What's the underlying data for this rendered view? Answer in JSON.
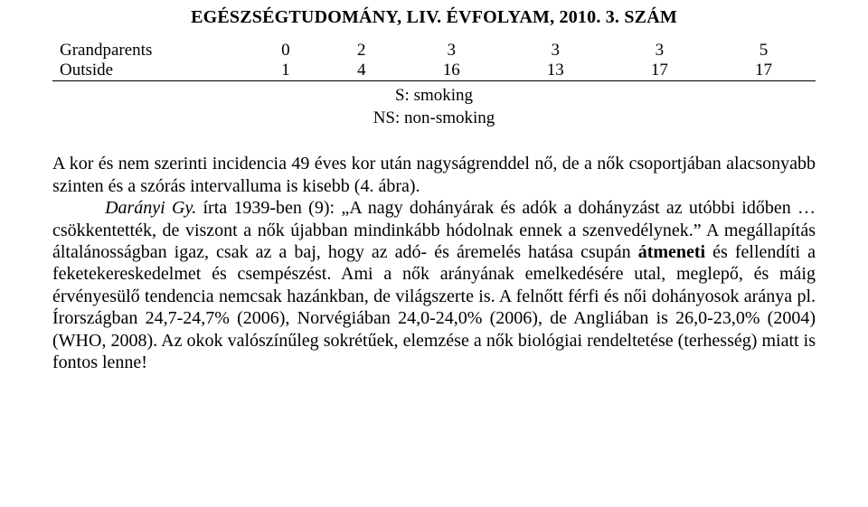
{
  "header": "EGÉSZSÉGTUDOMÁNY, LIV. ÉVFOLYAM, 2010. 3. SZÁM",
  "table": {
    "rows": [
      {
        "label": "Grandparents",
        "c1": "0",
        "c2": "2",
        "c3": "3",
        "c4": "3",
        "c5": "3",
        "c6": "5"
      },
      {
        "label": "Outside",
        "c1": "1",
        "c2": "4",
        "c3": "16",
        "c4": "13",
        "c5": "17",
        "c6": "17"
      }
    ],
    "legend1": "S: smoking",
    "legend2": "NS: non-smoking"
  },
  "para": {
    "t1": "A kor és nem szerinti incidencia 49 éves kor után nagyságrenddel nő, de a nők csoportjában alacsonyabb szinten és a szórás intervalluma is kisebb (4. ábra).",
    "author": "Darányi Gy.",
    "t2": " írta 1939-ben (9): „A nagy dohányárak és adók a dohányzást az utóbbi időben … csökkentették, de viszont a nők újabban mindinkább hódolnak ennek a szenvedélynek.” A megállapítás általánosságban igaz, csak az a baj, hogy az adó- és áremelés hatása csupán ",
    "t3_bold": "átmeneti",
    "t4": " és fellendíti a feketekereskedelmet és csempészést. Ami a nők arányának emelkedésére utal, meglepő, és máig érvényesülő tendencia nemcsak hazánkban, de világszerte is. A felnőtt férfi és női dohányosok aránya pl. Írországban 24,7-24,7% (2006), Norvégiában 24,0-24,0% (2006), de Angliában is 26,0-23,0% (2004) (WHO, 2008). Az okok valószínűleg sokrétűek, elemzése a nők biológiai rendeltetése (terhesség) miatt is fontos lenne!"
  }
}
